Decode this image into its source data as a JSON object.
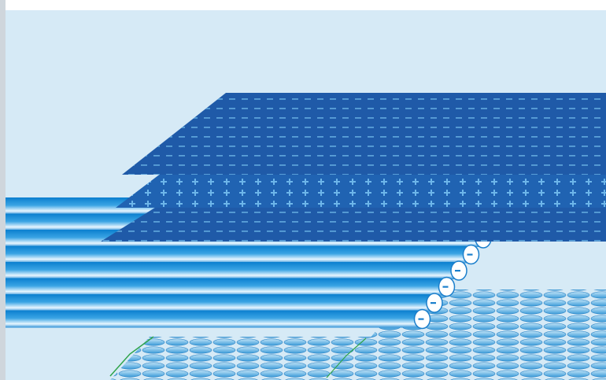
{
  "diagram": {
    "background_color": "#d6eaf6",
    "frame_color": "#ffffff",
    "sheets": [
      {
        "name": "top-sheet",
        "fill": "#1f5aa8",
        "dash": "#5aa0d8",
        "marks": "minus"
      },
      {
        "name": "middle-sheet",
        "fill": "#2063b2",
        "dash": "#5aa8e0",
        "marks": "plus"
      },
      {
        "name": "bottom-sheet",
        "fill": "#1f5aa8",
        "dash": "#5aa0d8",
        "marks": "minus"
      }
    ],
    "rods": {
      "count": 8,
      "color_dark": "#0a7fcf",
      "color_light": "#e8f6ff",
      "end_cap_color": "#ffffff",
      "end_cap_symbol": "minus"
    },
    "mesh": {
      "color_light": "#bfe3f7",
      "color_dark": "#3a9ad8",
      "edge_accent": "#2fa44a"
    }
  }
}
